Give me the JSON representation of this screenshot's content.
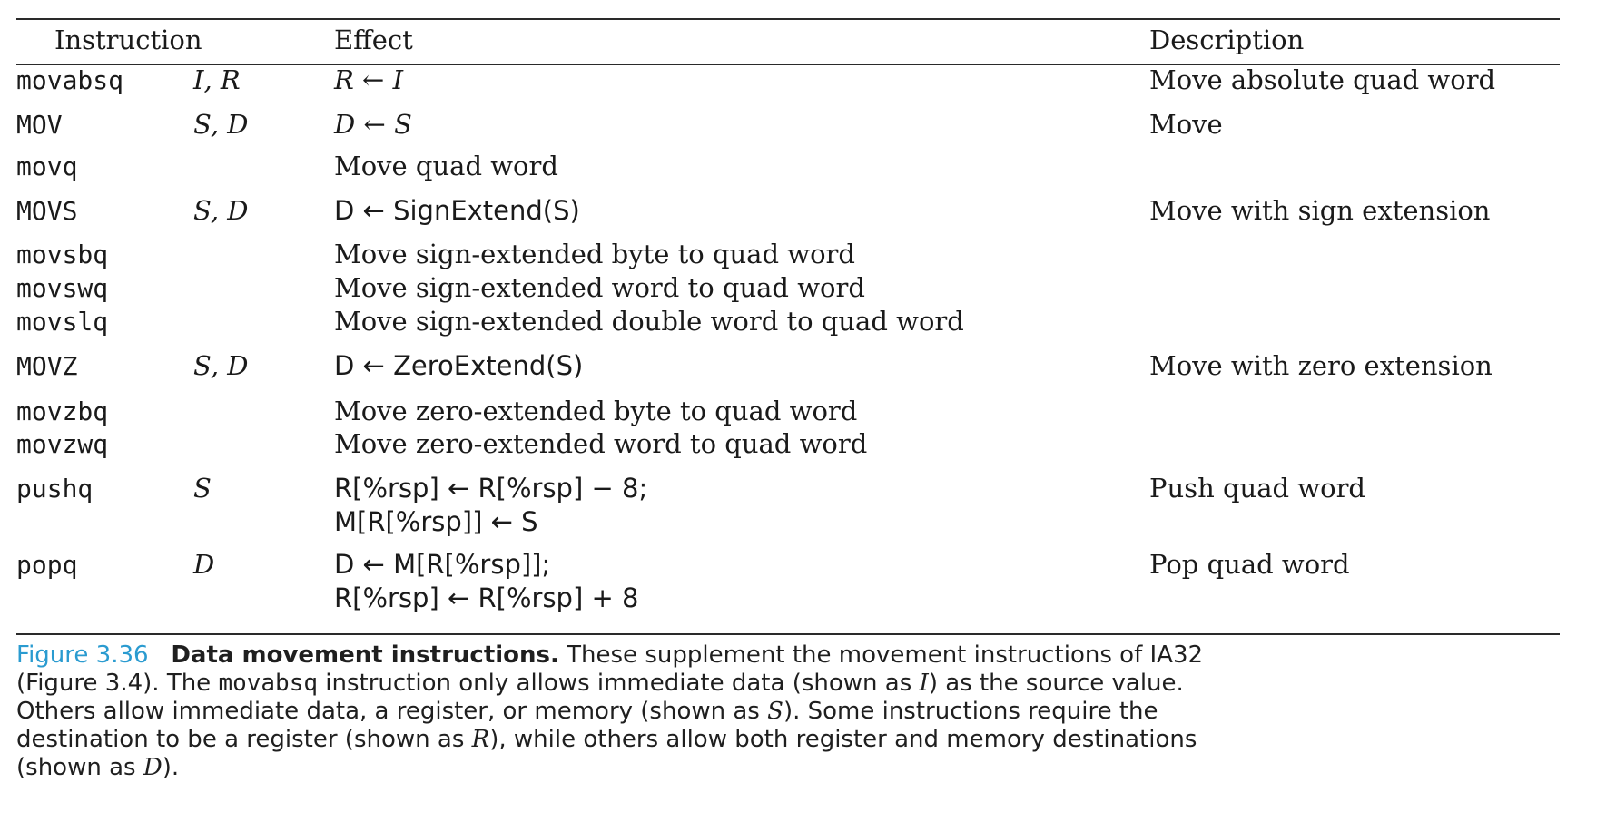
{
  "headers": {
    "instruction": "Instruction",
    "effect": "Effect",
    "description": "Description"
  },
  "rows": [
    {
      "inst": "movabsq",
      "ops": "I, R",
      "effect": "R ← I",
      "desc": "Move absolute quad word"
    },
    {
      "inst": "MOV",
      "ops": "S, D",
      "effect": "D ← S",
      "desc": "Move"
    },
    {
      "inst": "movq",
      "ops": "",
      "effect": "Move quad word",
      "desc": ""
    },
    {
      "inst": "MOVS",
      "ops": "S, D",
      "effect": "D ← SignExtend(S)",
      "desc": "Move with sign extension"
    },
    {
      "inst": "movsbq",
      "ops": "",
      "effect": "Move sign-extended byte to quad word",
      "desc": ""
    },
    {
      "inst": "movswq",
      "ops": "",
      "effect": "Move sign-extended word to quad word",
      "desc": ""
    },
    {
      "inst": "movslq",
      "ops": "",
      "effect": "Move sign-extended double word to quad word",
      "desc": ""
    },
    {
      "inst": "MOVZ",
      "ops": "S, D",
      "effect": "D ← ZeroExtend(S)",
      "desc": "Move with zero extension"
    },
    {
      "inst": "movzbq",
      "ops": "",
      "effect": "Move zero-extended byte to quad word",
      "desc": ""
    },
    {
      "inst": "movzwq",
      "ops": "",
      "effect": "Move zero-extended word to quad word",
      "desc": ""
    },
    {
      "inst": "pushq",
      "ops": "S",
      "effect": "R[%rsp] ← R[%rsp] − 8;",
      "effect2": "M[R[%rsp]] ← S",
      "desc": "Push quad word"
    },
    {
      "inst": "popq",
      "ops": "D",
      "effect": "D ← M[R[%rsp]];",
      "effect2": "R[%rsp] ← R[%rsp] + 8",
      "desc": "Pop quad word"
    }
  ],
  "caption": {
    "fig_num": "Figure 3.36",
    "title": "Data movement instructions.",
    "text1": " These supplement the movement instructions of IA32",
    "text2a": "(Figure 3.4). The ",
    "code": "movabsq",
    "text2b": " instruction only allows immediate data (shown as ",
    "sym_i": "I",
    "text2c": ") as the source value.",
    "text3a": "Others allow immediate data, a register, or memory (shown as ",
    "sym_s": "S",
    "text3b": "). Some instructions require the",
    "text4a": "destination to be a register (shown as ",
    "sym_r": "R",
    "text4b": "), while others allow both register and memory destinations",
    "text5a": "(shown as ",
    "sym_d": "D",
    "text5b": ")."
  }
}
